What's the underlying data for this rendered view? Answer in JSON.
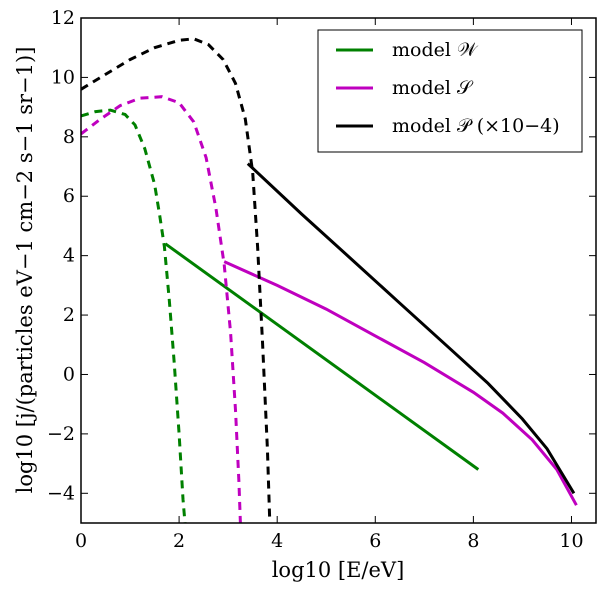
{
  "chart_data": {
    "type": "line",
    "xlabel": "log10 [E/eV]",
    "ylabel": "log10 [j/(particles eV−1 cm−2 s−1 sr−1)]",
    "xlim": [
      0,
      10.5
    ],
    "ylim": [
      -5,
      12
    ],
    "xticks": [
      0,
      2,
      4,
      6,
      8,
      10
    ],
    "yticks": [
      -4,
      -2,
      0,
      2,
      4,
      6,
      8,
      10,
      12
    ],
    "x_tick_labels": [
      "0",
      "2",
      "4",
      "6",
      "8",
      "10"
    ],
    "y_tick_labels": [
      "−4",
      "−2",
      "0",
      "2",
      "4",
      "6",
      "8",
      "10",
      "12"
    ],
    "legend_position": "top-right",
    "series": [
      {
        "name": "model 𝒲",
        "color": "#008000",
        "dashed": [
          [
            0,
            8.7
          ],
          [
            0.3,
            8.85
          ],
          [
            0.6,
            8.9
          ],
          [
            0.9,
            8.75
          ],
          [
            1.1,
            8.4
          ],
          [
            1.3,
            7.6
          ],
          [
            1.5,
            6.4
          ],
          [
            1.6,
            5.4
          ],
          [
            1.7,
            4.3
          ],
          [
            1.8,
            2.5
          ],
          [
            1.9,
            0.4
          ],
          [
            2.0,
            -2.0
          ],
          [
            2.08,
            -4.2
          ],
          [
            2.12,
            -5.0
          ]
        ],
        "solid": [
          [
            1.72,
            4.4
          ],
          [
            8.1,
            -3.2
          ]
        ]
      },
      {
        "name": "model 𝒮",
        "color": "#bf00bf",
        "dashed": [
          [
            0,
            8.1
          ],
          [
            0.4,
            8.6
          ],
          [
            0.8,
            9.05
          ],
          [
            1.2,
            9.3
          ],
          [
            1.65,
            9.35
          ],
          [
            2.0,
            9.15
          ],
          [
            2.3,
            8.5
          ],
          [
            2.55,
            7.3
          ],
          [
            2.75,
            5.6
          ],
          [
            2.92,
            3.7
          ],
          [
            3.05,
            1.4
          ],
          [
            3.15,
            -1.2
          ],
          [
            3.22,
            -3.6
          ],
          [
            3.25,
            -5.0
          ]
        ],
        "solid": [
          [
            2.92,
            3.8
          ],
          [
            4.0,
            3.0
          ],
          [
            5.0,
            2.2
          ],
          [
            6.0,
            1.3
          ],
          [
            7.0,
            0.4
          ],
          [
            8.0,
            -0.6
          ],
          [
            8.6,
            -1.3
          ],
          [
            9.2,
            -2.2
          ],
          [
            9.7,
            -3.2
          ],
          [
            10.1,
            -4.4
          ]
        ]
      },
      {
        "name": "model 𝒫 (×10−4)",
        "color": "#000000",
        "dashed": [
          [
            0,
            9.6
          ],
          [
            0.5,
            10.1
          ],
          [
            1.0,
            10.6
          ],
          [
            1.5,
            11.0
          ],
          [
            2.0,
            11.25
          ],
          [
            2.3,
            11.3
          ],
          [
            2.6,
            11.1
          ],
          [
            2.9,
            10.6
          ],
          [
            3.15,
            9.8
          ],
          [
            3.35,
            8.6
          ],
          [
            3.5,
            6.8
          ],
          [
            3.6,
            4.3
          ],
          [
            3.7,
            1.1
          ],
          [
            3.8,
            -2.5
          ],
          [
            3.85,
            -5.0
          ]
        ],
        "solid": [
          [
            3.4,
            7.1
          ],
          [
            4.5,
            5.4
          ],
          [
            5.5,
            3.9
          ],
          [
            6.5,
            2.4
          ],
          [
            7.5,
            0.9
          ],
          [
            8.3,
            -0.3
          ],
          [
            9.0,
            -1.5
          ],
          [
            9.5,
            -2.5
          ],
          [
            10.05,
            -4.0
          ]
        ]
      }
    ]
  }
}
